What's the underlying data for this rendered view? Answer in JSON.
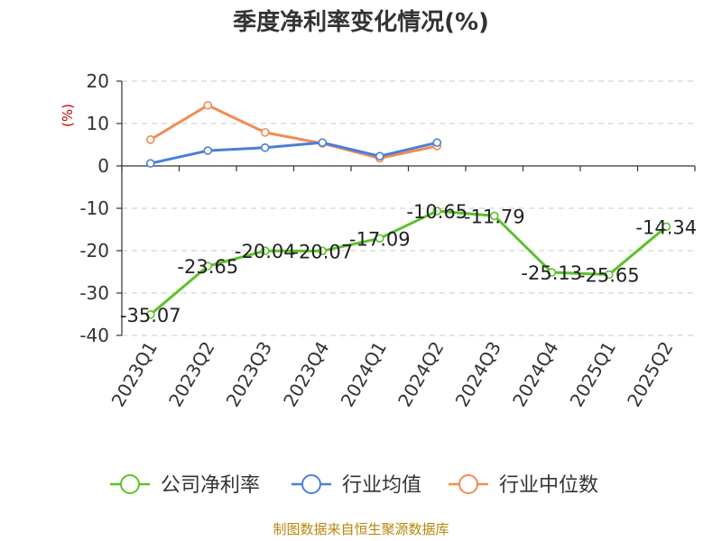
{
  "chart_data": {
    "type": "line",
    "title": "季度净利率变化情况(%)",
    "ylabel": "(%)",
    "ylim": [
      -40,
      20
    ],
    "yticks": [
      20,
      10,
      0,
      -10,
      -20,
      -30,
      -40
    ],
    "grid": true,
    "legend_position": "bottom",
    "categories": [
      "2023Q1",
      "2023Q2",
      "2023Q3",
      "2023Q4",
      "2024Q1",
      "2024Q2",
      "2024Q3",
      "2024Q4",
      "2025Q1",
      "2025Q2"
    ],
    "series": [
      {
        "name": "公司净利率",
        "color": "#5cc22b",
        "show_labels": true,
        "values": [
          -35.07,
          -23.65,
          -20.04,
          -20.07,
          -17.09,
          -10.65,
          -11.79,
          -25.13,
          -25.65,
          -14.34
        ],
        "labels": [
          "-35.07",
          "-23.65",
          "-20.04",
          "-20.07",
          "-17.09",
          "-10.65",
          "-11.79",
          "-25.13",
          "-25.65",
          "-14.34"
        ]
      },
      {
        "name": "行业均值",
        "color": "#4a7fd8",
        "show_labels": false,
        "values": [
          0.6,
          3.6,
          4.3,
          5.5,
          2.3,
          5.5,
          null,
          null,
          null,
          null
        ]
      },
      {
        "name": "行业中位数",
        "color": "#f28b54",
        "show_labels": false,
        "values": [
          6.2,
          14.3,
          7.9,
          5.3,
          1.8,
          4.7,
          null,
          null,
          null,
          null
        ]
      }
    ],
    "source": "制图数据来自恒生聚源数据库"
  }
}
